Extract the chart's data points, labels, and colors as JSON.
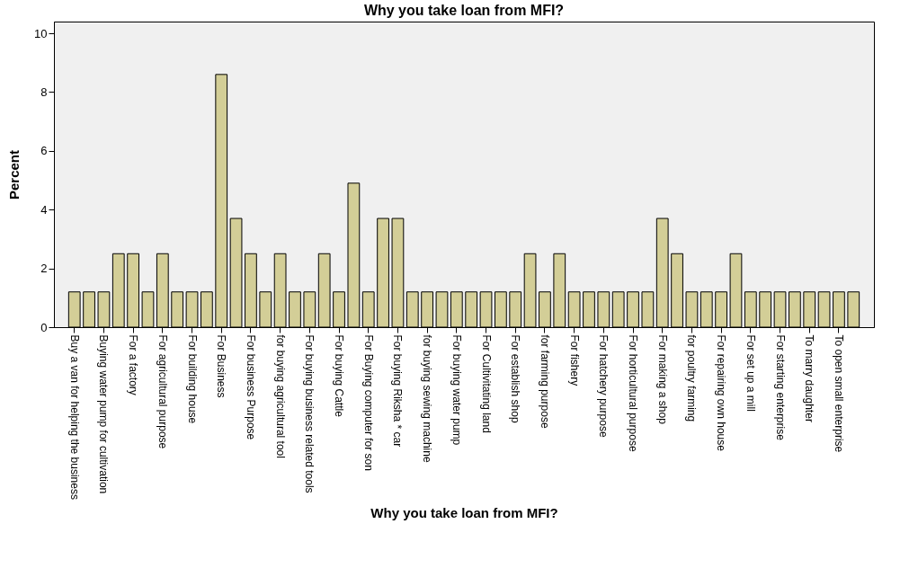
{
  "chart_data": {
    "type": "bar",
    "title": "Why you take loan from MFI?",
    "xlabel": "Why you take loan from MFI?",
    "ylabel": "Percent",
    "categories": [
      "Buy a van for helping the business",
      null,
      "Buying water pump for cultivation",
      null,
      "For a factory",
      null,
      "For agricultural purpose",
      null,
      "For building house",
      null,
      "For Business",
      null,
      "For business Purpose",
      null,
      "for buying agricultural tool",
      null,
      "For buying business related tools",
      null,
      "For buying Cattle",
      null,
      "For Buying computer for son",
      null,
      "For buying Riksha * car",
      null,
      "for buying sewing machine",
      null,
      "For buying water pump",
      null,
      "For Cultivitating  land",
      null,
      "For establish shop",
      null,
      "for farming purpose",
      null,
      "For fishery",
      null,
      "For hatchery purpose",
      null,
      "For horticultural purpose",
      null,
      "For making a shop",
      null,
      "for poultry farming",
      null,
      "For repairing own house",
      null,
      "For set up a mill",
      null,
      "For starting enterprise",
      null,
      "To marry daughter",
      null,
      "To open small enterprise",
      null
    ],
    "values": [
      1.2,
      1.2,
      1.2,
      2.5,
      2.5,
      1.2,
      2.5,
      1.2,
      1.2,
      1.2,
      8.6,
      3.7,
      2.5,
      1.2,
      2.5,
      1.2,
      1.2,
      2.5,
      1.2,
      4.9,
      1.2,
      3.7,
      3.7,
      1.2,
      1.2,
      1.2,
      1.2,
      1.2,
      1.2,
      1.2,
      1.2,
      2.5,
      1.2,
      2.5,
      1.2,
      1.2,
      1.2,
      1.2,
      1.2,
      1.2,
      3.7,
      2.5,
      1.2,
      1.2,
      1.2,
      2.5,
      1.2,
      1.2,
      1.2,
      1.2,
      1.2,
      1.2,
      1.2,
      1.2
    ],
    "color": "#d3ce97",
    "ylim": [
      0,
      10.4
    ],
    "yticks": [
      0,
      2,
      4,
      6,
      8,
      10
    ],
    "grid": false
  }
}
